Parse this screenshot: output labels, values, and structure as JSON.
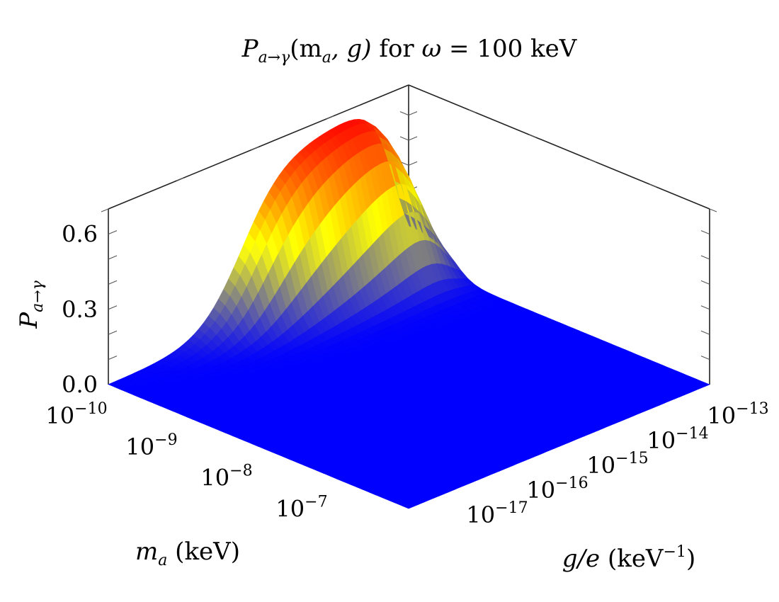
{
  "chart_data": {
    "type": "surface3d",
    "title": {
      "prefix": "P",
      "subscript": "a→γ",
      "args": "(m",
      "args_sub": "a",
      "args_tail": ", g)",
      "mid": " for ",
      "omega": "ω",
      "eq": " = 100 keV"
    },
    "xlabel": {
      "main": "m",
      "sub": "a",
      "unit": " (keV)"
    },
    "ylabel": {
      "main": "g/e",
      "unit": " (keV",
      "sup": "−1",
      "close": ")"
    },
    "zlabel": {
      "main": "P",
      "sub": "a→γ"
    },
    "x_axis": {
      "quantity": "m_a",
      "scale": "log",
      "range": [
        1e-10,
        1e-06
      ],
      "ticks": [
        {
          "value": 1e-10,
          "base": "10",
          "exp": "−10"
        },
        {
          "value": 1e-09,
          "base": "10",
          "exp": "−9"
        },
        {
          "value": 1e-08,
          "base": "10",
          "exp": "−8"
        },
        {
          "value": 1e-07,
          "base": "10",
          "exp": "−7"
        }
      ]
    },
    "y_axis": {
      "quantity": "g/e",
      "scale": "log",
      "range": [
        1e-18,
        1e-13
      ],
      "ticks": [
        {
          "value": 1e-17,
          "base": "10",
          "exp": "−17"
        },
        {
          "value": 1e-16,
          "base": "10",
          "exp": "−16"
        },
        {
          "value": 1e-15,
          "base": "10",
          "exp": "−15"
        },
        {
          "value": 1e-14,
          "base": "10",
          "exp": "−14"
        },
        {
          "value": 1e-13,
          "base": "10",
          "exp": "−13"
        }
      ]
    },
    "z_axis": {
      "range": [
        0,
        0.7
      ],
      "ticks": [
        {
          "value": 0.0,
          "label": "0.0"
        },
        {
          "value": 0.3,
          "label": "0.3"
        },
        {
          "value": 0.6,
          "label": "0.6"
        }
      ]
    },
    "surface": {
      "plateau_max": 0.67,
      "peak_g": 1e-13,
      "rise_center_log10_g": -15.8,
      "mass_cutoff_log10_ma": -9.7,
      "colormap": [
        "#0000ff",
        "#ffff00",
        "#ff0000"
      ]
    },
    "grid": false,
    "legend": "none"
  }
}
